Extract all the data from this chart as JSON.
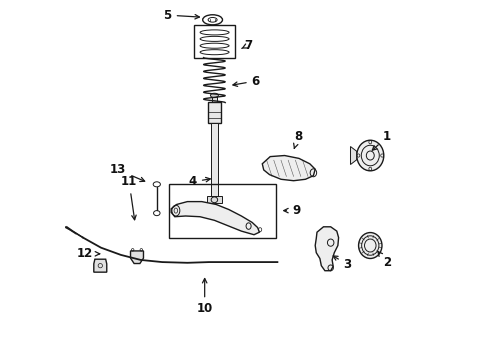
{
  "bg_color": "#ffffff",
  "line_color": "#1a1a1a",
  "label_color": "#111111",
  "fig_w": 4.9,
  "fig_h": 3.6,
  "label_positions": {
    "1": {
      "text": [
        0.895,
        0.62
      ],
      "arrow": [
        0.845,
        0.575
      ]
    },
    "2": {
      "text": [
        0.895,
        0.27
      ],
      "arrow": [
        0.862,
        0.31
      ]
    },
    "3": {
      "text": [
        0.785,
        0.265
      ],
      "arrow": [
        0.735,
        0.295
      ]
    },
    "4": {
      "text": [
        0.355,
        0.495
      ],
      "arrow": [
        0.415,
        0.505
      ]
    },
    "5": {
      "text": [
        0.285,
        0.958
      ],
      "arrow": [
        0.385,
        0.952
      ]
    },
    "6": {
      "text": [
        0.53,
        0.775
      ],
      "arrow": [
        0.455,
        0.762
      ]
    },
    "7": {
      "text": [
        0.51,
        0.875
      ],
      "arrow": [
        0.49,
        0.865
      ]
    },
    "8": {
      "text": [
        0.648,
        0.622
      ],
      "arrow": [
        0.636,
        0.585
      ]
    },
    "9": {
      "text": [
        0.642,
        0.415
      ],
      "arrow": [
        0.596,
        0.415
      ]
    },
    "10": {
      "text": [
        0.388,
        0.142
      ],
      "arrow": [
        0.388,
        0.238
      ]
    },
    "11": {
      "text": [
        0.178,
        0.495
      ],
      "arrow": [
        0.195,
        0.378
      ]
    },
    "12": {
      "text": [
        0.055,
        0.295
      ],
      "arrow": [
        0.1,
        0.295
      ]
    },
    "13": {
      "text": [
        0.148,
        0.528
      ],
      "arrow": [
        0.232,
        0.492
      ]
    }
  }
}
